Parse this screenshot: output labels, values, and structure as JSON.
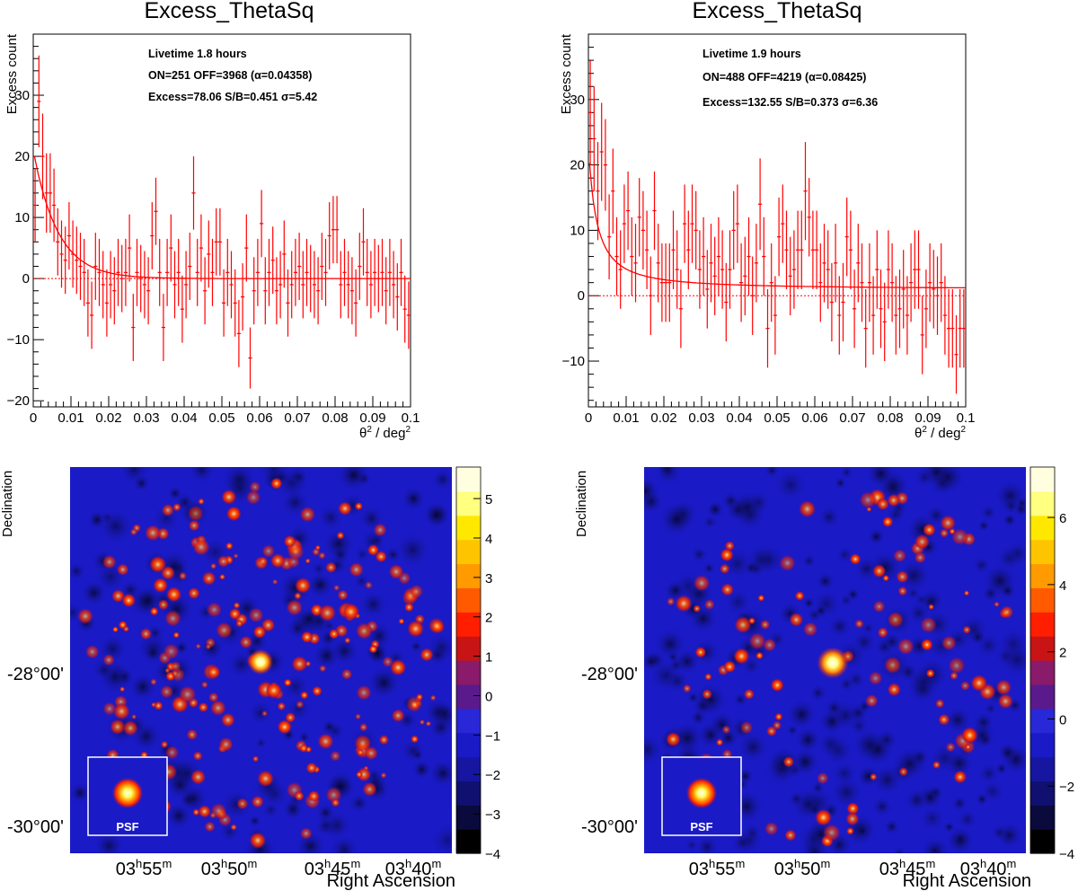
{
  "chart_data": [
    {
      "type": "scatter",
      "title": "Excess_ThetaSq",
      "ylabel": "Excess count",
      "xlabel_base": "θ",
      "xlabel_sup1": "2",
      "xlabel_mid": " / deg",
      "xlabel_sup2": "2",
      "xlim": [
        0,
        0.1
      ],
      "ylim": [
        -21,
        40
      ],
      "xticks": [
        0,
        0.01,
        0.02,
        0.03,
        0.04,
        0.05,
        0.06,
        0.07,
        0.08,
        0.09,
        0.1
      ],
      "xtick_labels": [
        "0",
        "0.01",
        "0.02",
        "0.03",
        "0.04",
        "0.05",
        "0.06",
        "0.07",
        "0.08",
        "0.09",
        "0.1"
      ],
      "yticks": [
        -20,
        -10,
        0,
        10,
        20,
        30
      ],
      "ytick_labels": [
        "−20",
        "−10",
        "0",
        "10",
        "20",
        "30"
      ],
      "stats": {
        "livetime": "Livetime 1.8 hours",
        "counts": "ON=251 OFF=3968 (α=0.04358)",
        "excess": "Excess=78.06 S/B=0.451 σ=5.42"
      },
      "fit": {
        "amplitude": 21,
        "decay_scale": 0.0065
      },
      "color": "#ff0000",
      "points": [
        [
          0.0005,
          12,
          6
        ],
        [
          0.0015,
          29,
          7.5
        ],
        [
          0.0025,
          20,
          7
        ],
        [
          0.0035,
          14,
          6.5
        ],
        [
          0.0045,
          14,
          6.5
        ],
        [
          0.0055,
          12,
          6
        ],
        [
          0.0065,
          6,
          5.5
        ],
        [
          0.0075,
          4,
          5.5
        ],
        [
          0.0085,
          3,
          5.5
        ],
        [
          0.0095,
          7,
          5.5
        ],
        [
          0.0105,
          4,
          5.5
        ],
        [
          0.0115,
          3,
          5.5
        ],
        [
          0.0125,
          2,
          5.5
        ],
        [
          0.0135,
          1,
          5.5
        ],
        [
          0.0145,
          -4,
          5.5
        ],
        [
          0.0155,
          -6,
          5.5
        ],
        [
          0.0165,
          2,
          5.5
        ],
        [
          0.0175,
          1,
          5.5
        ],
        [
          0.0185,
          -1,
          5.5
        ],
        [
          0.0195,
          -4,
          5.5
        ],
        [
          0.0205,
          -1,
          5.5
        ],
        [
          0.0215,
          -2,
          5.5
        ],
        [
          0.0225,
          1,
          5.5
        ],
        [
          0.0235,
          0,
          5.5
        ],
        [
          0.0245,
          1,
          5.5
        ],
        [
          0.0255,
          5,
          5.5
        ],
        [
          0.0265,
          -8,
          5.5
        ],
        [
          0.0275,
          1,
          5.5
        ],
        [
          0.0285,
          0,
          5.5
        ],
        [
          0.0295,
          -1,
          5.5
        ],
        [
          0.0305,
          -2,
          5.5
        ],
        [
          0.0315,
          7,
          5.5
        ],
        [
          0.0325,
          11,
          5.5
        ],
        [
          0.0335,
          1,
          5.5
        ],
        [
          0.0345,
          -8,
          5.5
        ],
        [
          0.0355,
          1,
          5.5
        ],
        [
          0.0365,
          5,
          5.5
        ],
        [
          0.0375,
          -1,
          5.5
        ],
        [
          0.0385,
          1,
          5.5
        ],
        [
          0.0395,
          -5,
          5.5
        ],
        [
          0.0405,
          -1,
          5.5
        ],
        [
          0.0415,
          2,
          5.5
        ],
        [
          0.0425,
          14,
          6
        ],
        [
          0.0435,
          1,
          5.5
        ],
        [
          0.0445,
          5,
          5.5
        ],
        [
          0.0455,
          -2,
          5.5
        ],
        [
          0.0465,
          4,
          5.5
        ],
        [
          0.0475,
          1,
          5.5
        ],
        [
          0.0485,
          6,
          5.5
        ],
        [
          0.0495,
          6,
          5.5
        ],
        [
          0.0505,
          -4,
          5.5
        ],
        [
          0.0515,
          1,
          5.5
        ],
        [
          0.0525,
          -1,
          5.5
        ],
        [
          0.0535,
          -4,
          5.5
        ],
        [
          0.0545,
          -9,
          5.5
        ],
        [
          0.0555,
          -3,
          5.5
        ],
        [
          0.0565,
          5,
          5.5
        ],
        [
          0.0575,
          -13,
          5
        ],
        [
          0.0585,
          -2,
          5.5
        ],
        [
          0.0595,
          1,
          5.5
        ],
        [
          0.0605,
          9,
          5.5
        ],
        [
          0.0615,
          -2,
          5.5
        ],
        [
          0.0625,
          1,
          5.5
        ],
        [
          0.0635,
          3,
          5.5
        ],
        [
          0.0645,
          -2,
          5.5
        ],
        [
          0.0655,
          -1,
          5.5
        ],
        [
          0.0665,
          4,
          5.5
        ],
        [
          0.0675,
          -4,
          5.5
        ],
        [
          0.0685,
          -1,
          5.5
        ],
        [
          0.0695,
          1,
          5.5
        ],
        [
          0.0705,
          2,
          5.5
        ],
        [
          0.0715,
          -1,
          5.5
        ],
        [
          0.0725,
          1,
          5.5
        ],
        [
          0.0735,
          0,
          5.5
        ],
        [
          0.0745,
          -1,
          5.5
        ],
        [
          0.0755,
          -2,
          5.5
        ],
        [
          0.0765,
          2,
          5.5
        ],
        [
          0.0775,
          1,
          5.5
        ],
        [
          0.0785,
          7,
          5.5
        ],
        [
          0.0795,
          8,
          5.5
        ],
        [
          0.0805,
          8,
          5.5
        ],
        [
          0.0815,
          -1,
          5.5
        ],
        [
          0.0825,
          1,
          5.5
        ],
        [
          0.0835,
          -1,
          5.5
        ],
        [
          0.0845,
          -2,
          5.5
        ],
        [
          0.0855,
          -4,
          5.5
        ],
        [
          0.0865,
          2,
          5.5
        ],
        [
          0.0875,
          6,
          5.5
        ],
        [
          0.0885,
          1,
          5.5
        ],
        [
          0.0895,
          -1,
          5.5
        ],
        [
          0.0905,
          1,
          5.5
        ],
        [
          0.0915,
          0,
          5.5
        ],
        [
          0.0925,
          1,
          5.5
        ],
        [
          0.0935,
          -2,
          5.5
        ],
        [
          0.0945,
          1,
          5.5
        ],
        [
          0.0955,
          -1,
          5.5
        ],
        [
          0.0965,
          -3,
          5.5
        ],
        [
          0.0975,
          1,
          5.5
        ],
        [
          0.0985,
          -5,
          5.5
        ],
        [
          0.0995,
          -6,
          5.5
        ]
      ]
    },
    {
      "type": "scatter",
      "title": "Excess_ThetaSq",
      "ylabel": "Excess count",
      "xlabel_base": "θ",
      "xlabel_sup1": "2",
      "xlabel_mid": " / deg",
      "xlabel_sup2": "2",
      "xlim": [
        0,
        0.1
      ],
      "ylim": [
        -17,
        40
      ],
      "xticks": [
        0,
        0.01,
        0.02,
        0.03,
        0.04,
        0.05,
        0.06,
        0.07,
        0.08,
        0.09,
        0.1
      ],
      "xtick_labels": [
        "0",
        "0.01",
        "0.02",
        "0.03",
        "0.04",
        "0.05",
        "0.06",
        "0.07",
        "0.08",
        "0.09",
        "0.1"
      ],
      "yticks": [
        -10,
        0,
        10,
        20,
        30
      ],
      "ytick_labels": [
        "−10",
        "0",
        "10",
        "20",
        "30"
      ],
      "stats": {
        "livetime": "Livetime 1.9 hours",
        "counts": "ON=488 OFF=4219 (α=0.08425)",
        "excess": "Excess=132.55 S/B=0.373 σ=6.36"
      },
      "fit": {
        "amplitude": 22,
        "decay_scale": 0.0085,
        "baseline": 1
      },
      "color": "#ff0000",
      "points": [
        [
          0.0005,
          28,
          8
        ],
        [
          0.0015,
          24,
          8
        ],
        [
          0.0025,
          16,
          7.5
        ],
        [
          0.0035,
          22,
          7.5
        ],
        [
          0.0045,
          20,
          7
        ],
        [
          0.0055,
          9,
          6.5
        ],
        [
          0.0065,
          16,
          6.5
        ],
        [
          0.0075,
          6,
          6
        ],
        [
          0.0085,
          4,
          6
        ],
        [
          0.0095,
          11,
          6
        ],
        [
          0.0105,
          13,
          6
        ],
        [
          0.0115,
          6,
          6
        ],
        [
          0.0125,
          5,
          6
        ],
        [
          0.0135,
          12,
          6
        ],
        [
          0.0145,
          10,
          6
        ],
        [
          0.0155,
          7,
          6
        ],
        [
          0.0165,
          0,
          6
        ],
        [
          0.0175,
          13,
          6
        ],
        [
          0.0185,
          5,
          6
        ],
        [
          0.0195,
          2,
          6
        ],
        [
          0.0205,
          2,
          6
        ],
        [
          0.0215,
          2,
          6
        ],
        [
          0.0225,
          7,
          6
        ],
        [
          0.0235,
          4,
          6
        ],
        [
          0.0245,
          -2,
          6
        ],
        [
          0.0255,
          11,
          6
        ],
        [
          0.0265,
          7,
          6
        ],
        [
          0.0275,
          11,
          6
        ],
        [
          0.0285,
          10,
          6
        ],
        [
          0.0295,
          4,
          6
        ],
        [
          0.0305,
          6,
          6
        ],
        [
          0.0315,
          1,
          6
        ],
        [
          0.0325,
          5,
          6
        ],
        [
          0.0335,
          3,
          6
        ],
        [
          0.0345,
          6,
          6
        ],
        [
          0.0355,
          4,
          6
        ],
        [
          0.0365,
          -1,
          6
        ],
        [
          0.0375,
          4,
          6
        ],
        [
          0.0385,
          10,
          6
        ],
        [
          0.0395,
          11,
          6
        ],
        [
          0.0405,
          2,
          6
        ],
        [
          0.0415,
          3,
          6
        ],
        [
          0.0425,
          6,
          6
        ],
        [
          0.0435,
          0,
          6
        ],
        [
          0.0445,
          5,
          6
        ],
        [
          0.0455,
          14,
          7
        ],
        [
          0.0465,
          6,
          6
        ],
        [
          0.0475,
          -5,
          6
        ],
        [
          0.0485,
          2,
          6
        ],
        [
          0.0495,
          -3,
          6
        ],
        [
          0.0505,
          9,
          6
        ],
        [
          0.0515,
          11,
          6
        ],
        [
          0.0525,
          7,
          6
        ],
        [
          0.0535,
          3,
          6
        ],
        [
          0.0545,
          4,
          6
        ],
        [
          0.0555,
          7,
          6
        ],
        [
          0.0565,
          7,
          6
        ],
        [
          0.0575,
          16,
          7.5
        ],
        [
          0.0585,
          12,
          6
        ],
        [
          0.0595,
          7,
          6
        ],
        [
          0.0605,
          7,
          6
        ],
        [
          0.0615,
          2,
          6
        ],
        [
          0.0625,
          5,
          6
        ],
        [
          0.0635,
          4,
          6
        ],
        [
          0.0645,
          -1,
          6
        ],
        [
          0.0655,
          5,
          6
        ],
        [
          0.0665,
          -3,
          6
        ],
        [
          0.0675,
          -1,
          6
        ],
        [
          0.0685,
          9,
          6
        ],
        [
          0.0695,
          7,
          6
        ],
        [
          0.0705,
          -2,
          6
        ],
        [
          0.0715,
          5,
          6
        ],
        [
          0.0725,
          2,
          6
        ],
        [
          0.0735,
          -5,
          6
        ],
        [
          0.0745,
          2,
          6
        ],
        [
          0.0755,
          -3,
          6
        ],
        [
          0.0765,
          4,
          6
        ],
        [
          0.0775,
          -2,
          6
        ],
        [
          0.0785,
          -4,
          6
        ],
        [
          0.0795,
          4,
          6
        ],
        [
          0.0805,
          2,
          6
        ],
        [
          0.0815,
          -3,
          6
        ],
        [
          0.0825,
          -2,
          6
        ],
        [
          0.0835,
          1,
          6
        ],
        [
          0.0845,
          -3,
          6
        ],
        [
          0.0855,
          2,
          6
        ],
        [
          0.0865,
          4,
          6
        ],
        [
          0.0875,
          4,
          6
        ],
        [
          0.0885,
          -6,
          6
        ],
        [
          0.0895,
          -2,
          6
        ],
        [
          0.0905,
          2,
          6
        ],
        [
          0.0915,
          1,
          6
        ],
        [
          0.0925,
          0,
          6
        ],
        [
          0.0935,
          2,
          6
        ],
        [
          0.0945,
          -3,
          6
        ],
        [
          0.0955,
          -5,
          6
        ],
        [
          0.0965,
          -5,
          6
        ],
        [
          0.0975,
          -9,
          6
        ],
        [
          0.0985,
          -5,
          6
        ],
        [
          0.0995,
          -5,
          6
        ]
      ]
    },
    {
      "type": "heatmap",
      "ylabel": "Declination",
      "xlabel": "Right Ascension",
      "dec_labels": [
        "-28°00'",
        "-30°00'"
      ],
      "ra_labels": [
        {
          "h": "03",
          "m": "55"
        },
        {
          "h": "03",
          "m": "50"
        },
        {
          "h": "03",
          "m": "45"
        },
        {
          "h": "03",
          "m": "40"
        }
      ],
      "colorbar_ticks": [
        "5",
        "4",
        "3",
        "2",
        "1",
        "0",
        "−1",
        "−2",
        "−3",
        "−4"
      ],
      "colorbar_range": [
        -4,
        5.8
      ],
      "colorbar_colors": [
        "#000000",
        "#0a0a3c",
        "#101070",
        "#1616a0",
        "#1a1ac6",
        "#2828d8",
        "#5a1a8c",
        "#8a1a6a",
        "#c81414",
        "#ff1e00",
        "#ff5a00",
        "#ff9a00",
        "#ffc400",
        "#ffe800",
        "#ffff80",
        "#ffffe0"
      ],
      "psf_label": "PSF",
      "source_brightness": 5.5
    },
    {
      "type": "heatmap",
      "ylabel": "Declination",
      "xlabel": "Right Ascension",
      "dec_labels": [
        "-28°00'",
        "-30°00'"
      ],
      "ra_labels": [
        {
          "h": "03",
          "m": "55"
        },
        {
          "h": "03",
          "m": "50"
        },
        {
          "h": "03",
          "m": "45"
        },
        {
          "h": "03",
          "m": "40"
        }
      ],
      "colorbar_ticks": [
        "6",
        "4",
        "2",
        "0",
        "−2",
        "−4"
      ],
      "colorbar_range": [
        -4,
        7.5
      ],
      "colorbar_colors": [
        "#000000",
        "#0a0a3c",
        "#101070",
        "#1616a0",
        "#1a1ac6",
        "#2828d8",
        "#5a1a8c",
        "#8a1a6a",
        "#c81414",
        "#ff1e00",
        "#ff5a00",
        "#ff9a00",
        "#ffc400",
        "#ffe800",
        "#ffff80",
        "#ffffe0"
      ],
      "psf_label": "PSF",
      "source_brightness": 6.8
    }
  ]
}
